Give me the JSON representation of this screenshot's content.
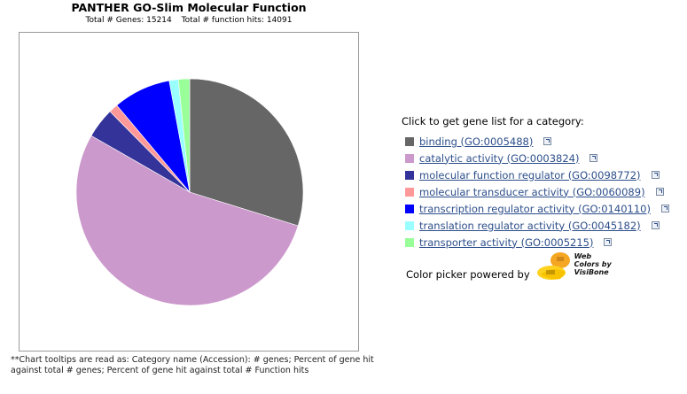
{
  "header": {
    "title": "PANTHER GO-Slim Molecular Function",
    "total_genes": "Total # Genes: 15214",
    "total_hits": "Total # function hits: 14091"
  },
  "legend": {
    "heading": "Click to get gene list for a category:",
    "items": [
      {
        "label": "binding (GO:0005488)",
        "color": "#666666"
      },
      {
        "label": "catalytic activity (GO:0003824)",
        "color": "#CC99CC"
      },
      {
        "label": "molecular function regulator (GO:0098772)",
        "color": "#333399"
      },
      {
        "label": "molecular transducer activity (GO:0060089)",
        "color": "#FF9999"
      },
      {
        "label": "transcription regulator activity (GO:0140110)",
        "color": "#0000FF"
      },
      {
        "label": "translation regulator activity (GO:0045182)",
        "color": "#99FFFF"
      },
      {
        "label": "transporter activity (GO:0005215)",
        "color": "#99FF99"
      }
    ],
    "icon": "external-link-icon"
  },
  "picker": {
    "label": "Color picker powered by",
    "logo_line1": "Web",
    "logo_line2": "Colors by",
    "logo_line3": "VisiBone"
  },
  "footnote": "**Chart tooltips are read as: Category name (Accession): # genes; Percent of gene hit against total # genes; Percent of gene hit against total # Function hits",
  "chart_data": {
    "type": "pie",
    "title": "PANTHER GO-Slim Molecular Function",
    "categories": [
      "binding (GO:0005488)",
      "catalytic activity (GO:0003824)",
      "molecular function regulator (GO:0098772)",
      "molecular transducer activity (GO:0060089)",
      "transcription regulator activity (GO:0140110)",
      "translation regulator activity (GO:0045182)",
      "transporter activity (GO:0005215)"
    ],
    "values": [
      29.8,
      53.5,
      4.3,
      1.3,
      8.2,
      1.3,
      1.6
    ],
    "colors": [
      "#666666",
      "#CC99CC",
      "#333399",
      "#FF9999",
      "#0000FF",
      "#99FFFF",
      "#99FF99"
    ],
    "start": "12 o'clock",
    "direction": "clockwise"
  }
}
